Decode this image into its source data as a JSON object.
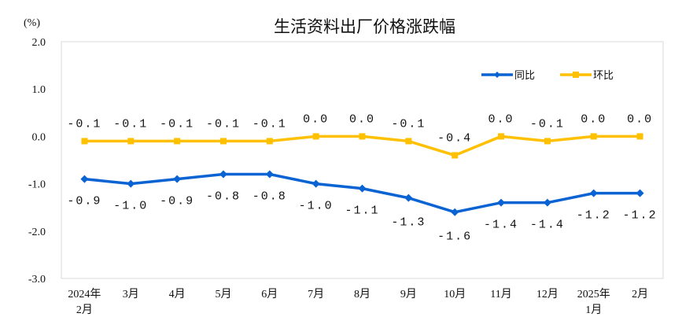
{
  "chart_data": {
    "type": "line",
    "title": "生活资料出厂价格涨跌幅",
    "ylabel": "(%)",
    "ylim": [
      -3.0,
      2.0
    ],
    "yticks": [
      "2.0",
      "1.0",
      "0.0",
      "-1.0",
      "-2.0",
      "-3.0"
    ],
    "categories": [
      [
        "2024年",
        "2月"
      ],
      [
        "3月"
      ],
      [
        "4月"
      ],
      [
        "5月"
      ],
      [
        "6月"
      ],
      [
        "7月"
      ],
      [
        "8月"
      ],
      [
        "9月"
      ],
      [
        "10月"
      ],
      [
        "11月"
      ],
      [
        "12月"
      ],
      [
        "2025年",
        "1月"
      ],
      [
        "2月"
      ]
    ],
    "grid": false,
    "legend_position": "top-right",
    "series": [
      {
        "name": "同比",
        "color": "#0a63d3",
        "marker": "diamond",
        "values": [
          -0.9,
          -1.0,
          -0.9,
          -0.8,
          -0.8,
          -1.0,
          -1.1,
          -1.3,
          -1.6,
          -1.4,
          -1.4,
          -1.2,
          -1.2
        ]
      },
      {
        "name": "环比",
        "color": "#ffc000",
        "marker": "square",
        "values": [
          -0.1,
          -0.1,
          -0.1,
          -0.1,
          -0.1,
          0.0,
          0.0,
          -0.1,
          -0.4,
          0.0,
          -0.1,
          0.0,
          0.0
        ]
      }
    ]
  }
}
